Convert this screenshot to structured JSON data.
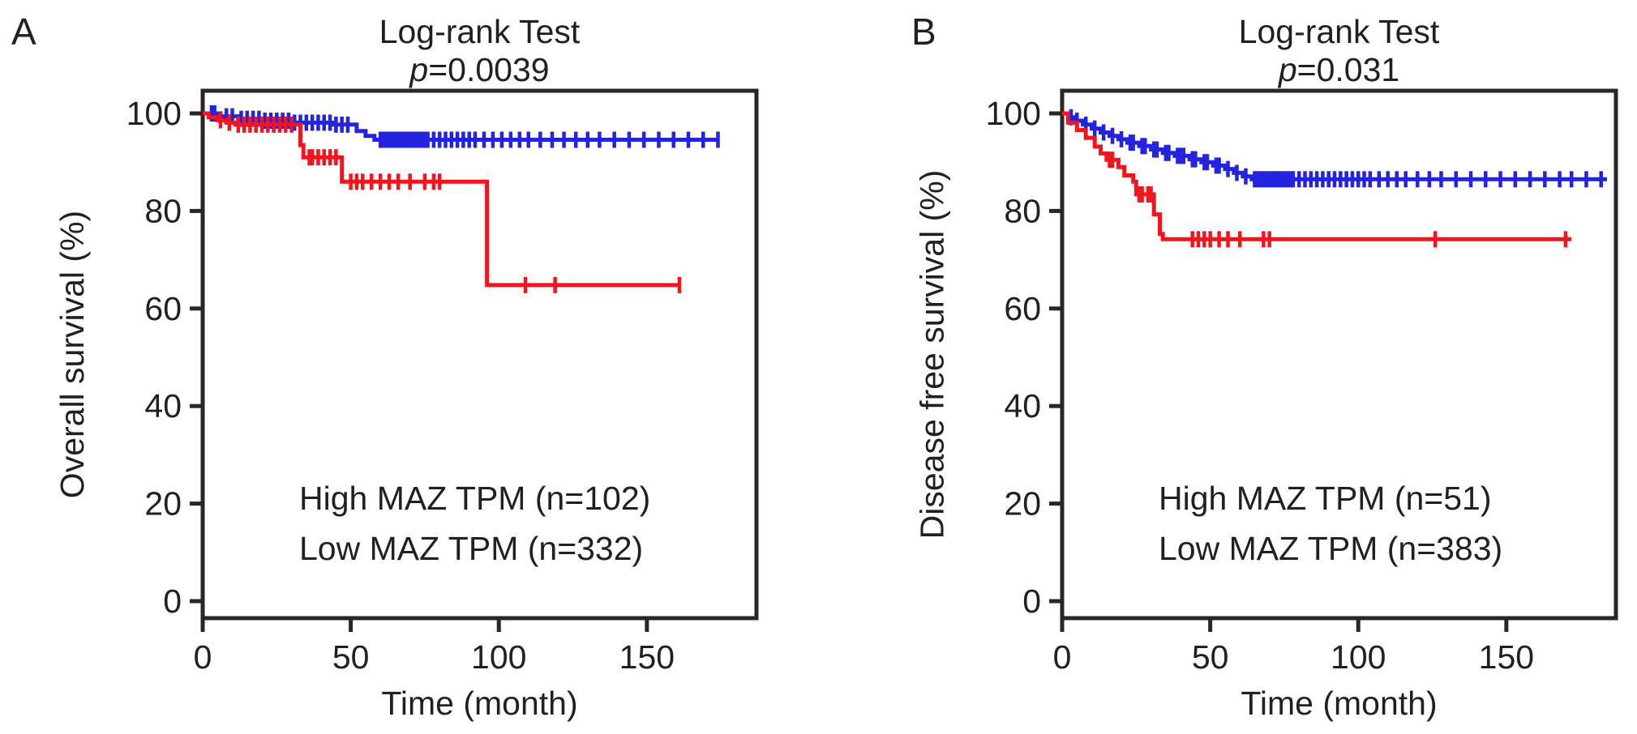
{
  "figure": {
    "background": "#ffffff",
    "text_color": "#231f20",
    "axis_color": "#2b2523",
    "curve_red": "#f2141e",
    "curve_blue": "#2323e0",
    "legend_red": "#e41b2d",
    "legend_blue": "#1e3a8c"
  },
  "panels": [
    {
      "letter": "A",
      "title": "Log-rank Test",
      "p_symbol": "p",
      "p_rest": "=0.0039",
      "y_label": "Overall survival (%)",
      "x_label": "Time (month)",
      "legend": [
        {
          "label": "High MAZ TPM (n=102)",
          "color": "#e41b2d"
        },
        {
          "label": "Low MAZ TPM (n=332)",
          "color": "#1e3a8c"
        }
      ]
    },
    {
      "letter": "B",
      "title": "Log-rank Test",
      "p_symbol": "p",
      "p_rest": "=0.031",
      "y_label": "Disease free survival (%)",
      "x_label": "Time (month)",
      "legend": [
        {
          "label": "High MAZ TPM (n=51)",
          "color": "#e41b2d"
        },
        {
          "label": "Low MAZ TPM (n=383)",
          "color": "#1e3a8c"
        }
      ]
    }
  ],
  "chart_data": [
    {
      "type": "line",
      "subtype": "kaplan-meier",
      "title": "Log-rank Test p=0.0039",
      "xlabel": "Time (month)",
      "ylabel": "Overall survival (%)",
      "xlim": [
        0,
        187
      ],
      "ylim": [
        0,
        105
      ],
      "xticks": [
        0,
        50,
        100,
        150
      ],
      "yticks": [
        0,
        20,
        40,
        60,
        80,
        100
      ],
      "grid": false,
      "legend_position": "lower-left-inside",
      "series": [
        {
          "name": "High MAZ TPM (n=102)",
          "color": "#f2141e",
          "steps": [
            [
              0,
              100
            ],
            [
              2,
              99.2
            ],
            [
              5,
              98.6
            ],
            [
              8,
              98.1
            ],
            [
              11,
              97.7
            ],
            [
              33,
              93.5
            ],
            [
              34,
              91.0
            ],
            [
              47,
              86.0
            ],
            [
              96,
              64.8
            ],
            [
              161,
              64.8
            ]
          ],
          "censor_t": [
            6,
            9,
            12,
            14,
            16,
            18,
            20,
            22,
            24,
            26,
            28,
            30,
            36,
            37,
            39,
            41,
            43,
            45,
            50,
            52,
            54,
            57,
            60,
            63,
            66,
            70,
            75,
            78,
            80,
            109,
            119,
            161
          ]
        },
        {
          "name": "Low MAZ TPM (n=332)",
          "color": "#2323e0",
          "steps": [
            [
              0,
              100
            ],
            [
              6,
              99.4
            ],
            [
              12,
              98.9
            ],
            [
              20,
              98.5
            ],
            [
              30,
              98.1
            ],
            [
              44,
              97.7
            ],
            [
              52,
              96.4
            ],
            [
              55,
              95.4
            ],
            [
              58,
              94.6
            ],
            [
              174,
              94.6
            ]
          ],
          "censor_t": [
            3,
            4,
            8,
            10,
            13,
            15,
            17,
            19,
            21,
            23,
            25,
            27,
            29,
            31,
            33,
            35,
            37,
            39,
            41,
            43,
            45,
            47,
            49,
            60,
            61,
            62,
            63,
            64,
            65,
            66,
            67,
            68,
            69,
            70,
            71,
            72,
            73,
            74,
            75,
            76,
            78,
            80,
            82,
            84,
            86,
            88,
            90,
            92,
            95,
            98,
            101,
            104,
            107,
            110,
            114,
            118,
            122,
            126,
            130,
            134,
            139,
            144,
            149,
            154,
            159,
            164,
            169,
            174
          ]
        }
      ]
    },
    {
      "type": "line",
      "subtype": "kaplan-meier",
      "title": "Log-rank Test p=0.031",
      "xlabel": "Time (month)",
      "ylabel": "Disease free survival (%)",
      "xlim": [
        0,
        187
      ],
      "ylim": [
        0,
        105
      ],
      "xticks": [
        0,
        50,
        100,
        150
      ],
      "yticks": [
        0,
        20,
        40,
        60,
        80,
        100
      ],
      "grid": false,
      "legend_position": "lower-left-inside",
      "series": [
        {
          "name": "High MAZ TPM (n=51)",
          "color": "#f2141e",
          "steps": [
            [
              0,
              100
            ],
            [
              2,
              98.1
            ],
            [
              5,
              96.6
            ],
            [
              8,
              95.0
            ],
            [
              11,
              93.2
            ],
            [
              13,
              91.8
            ],
            [
              15,
              90.5
            ],
            [
              19,
              89.0
            ],
            [
              21,
              87.3
            ],
            [
              24,
              86.0
            ],
            [
              25,
              83.4
            ],
            [
              31,
              79.3
            ],
            [
              33,
              75.3
            ],
            [
              34,
              74.2
            ],
            [
              172,
              74.2
            ]
          ],
          "censor_t": [
            16,
            17,
            26,
            27,
            29,
            30,
            44,
            46,
            48,
            50,
            53,
            56,
            60,
            68,
            70,
            126,
            170
          ]
        },
        {
          "name": "Low MAZ TPM (n=383)",
          "color": "#2323e0",
          "steps": [
            [
              0,
              100
            ],
            [
              2,
              99.2
            ],
            [
              4,
              98.5
            ],
            [
              7,
              97.7
            ],
            [
              10,
              96.9
            ],
            [
              13,
              96.1
            ],
            [
              16,
              95.4
            ],
            [
              19,
              94.7
            ],
            [
              22,
              94.0
            ],
            [
              26,
              93.3
            ],
            [
              30,
              92.6
            ],
            [
              34,
              91.9
            ],
            [
              38,
              91.3
            ],
            [
              43,
              90.6
            ],
            [
              47,
              90.0
            ],
            [
              51,
              89.3
            ],
            [
              55,
              88.6
            ],
            [
              58,
              87.8
            ],
            [
              61,
              87.1
            ],
            [
              64,
              86.5
            ],
            [
              184,
              86.5
            ]
          ],
          "censor_t": [
            3,
            5,
            8,
            11,
            14,
            17,
            20,
            23,
            24,
            27,
            28,
            31,
            32,
            35,
            36,
            39,
            40,
            41,
            44,
            45,
            48,
            49,
            52,
            53,
            56,
            59,
            62,
            65,
            66,
            67,
            68,
            69,
            70,
            71,
            72,
            73,
            74,
            75,
            76,
            77,
            78,
            80,
            82,
            84,
            86,
            88,
            90,
            92,
            94,
            96,
            98,
            100,
            102,
            104,
            107,
            110,
            113,
            116,
            120,
            124,
            128,
            133,
            138,
            143,
            148,
            153,
            158,
            163,
            168,
            172,
            177,
            182
          ]
        }
      ]
    }
  ]
}
